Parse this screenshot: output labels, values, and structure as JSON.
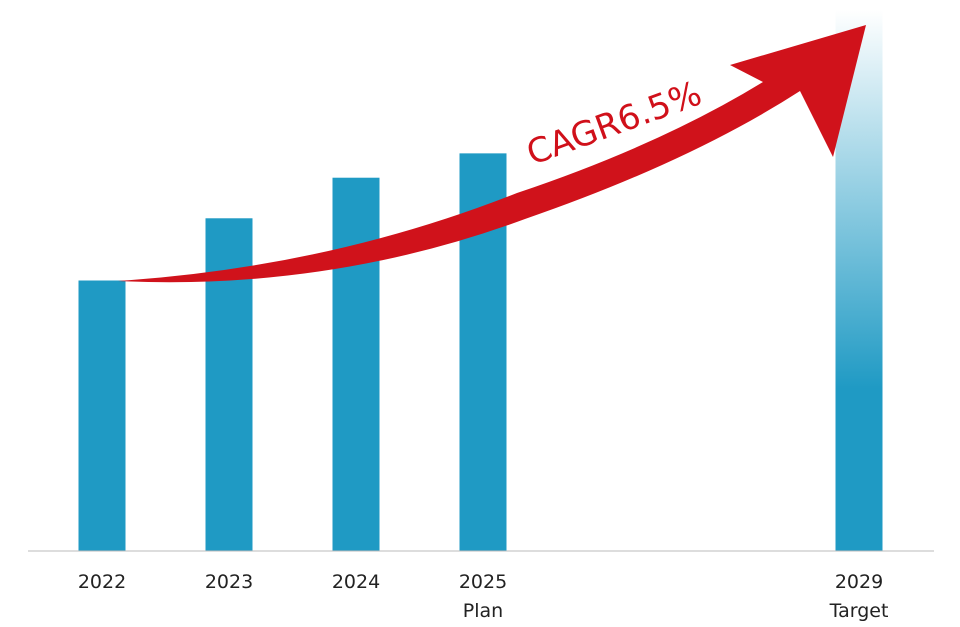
{
  "chart_data": {
    "type": "bar",
    "categories": [
      "2022",
      "2023",
      "2024",
      "2025",
      "2029"
    ],
    "sublabels": [
      "",
      "",
      "",
      "Plan",
      "Target"
    ],
    "values": [
      100,
      123,
      138,
      147,
      200
    ],
    "ylim": [
      0,
      200
    ],
    "title": "",
    "xlabel": "",
    "ylabel": "",
    "grid": false,
    "annotation": "CAGR6.5%",
    "colors": {
      "bar": "#1f9ac4",
      "target_fade_top": "#ffffff",
      "arrow": "#d0121b",
      "axis": "#bbbbbb",
      "text": "#222222",
      "annotation_text": "#d0101a"
    }
  }
}
